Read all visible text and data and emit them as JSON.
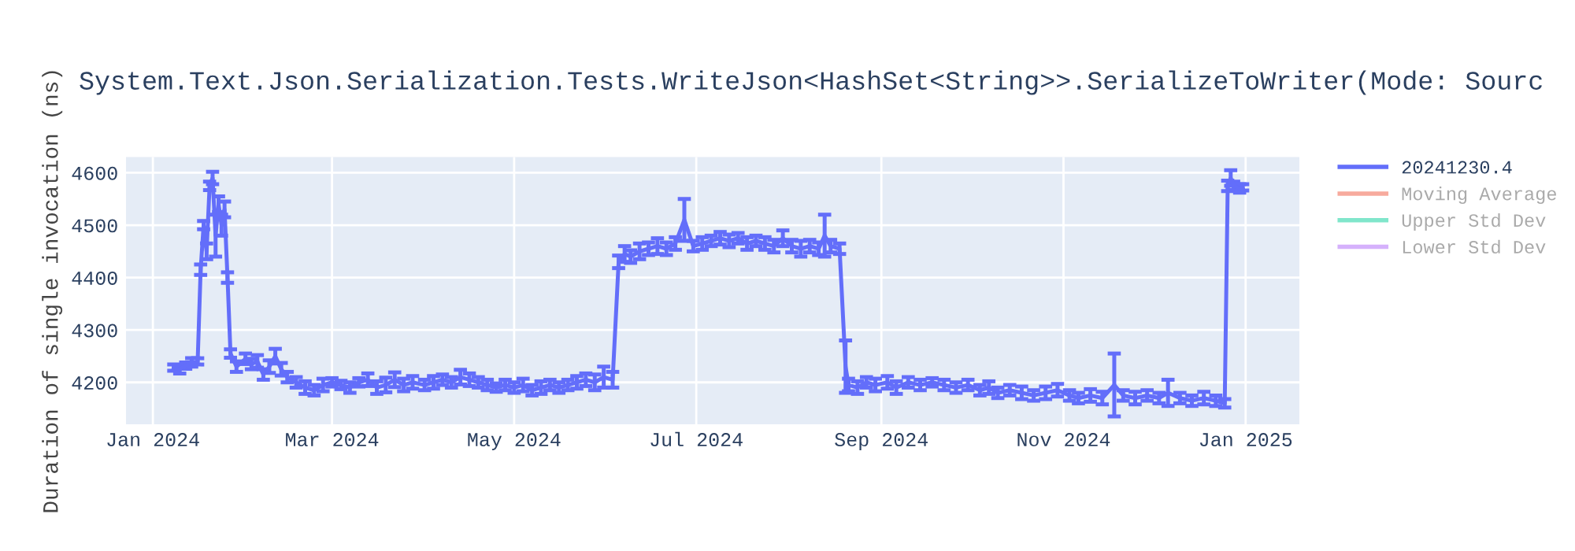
{
  "chart_data": {
    "type": "line",
    "title": "System.Text.Json.Serialization.Tests.WriteJson<HashSet<String>>.SerializeToWriter(Mode: Sourc",
    "ylabel": "Duration of single invocation (ns)",
    "xlim": [
      "2023-12-23",
      "2025-01-19"
    ],
    "xticks": [
      {
        "value": "2024-01-01",
        "label": "Jan 2024"
      },
      {
        "value": "2024-03-01",
        "label": "Mar 2024"
      },
      {
        "value": "2024-05-01",
        "label": "May 2024"
      },
      {
        "value": "2024-07-01",
        "label": "Jul 2024"
      },
      {
        "value": "2024-09-01",
        "label": "Sep 2024"
      },
      {
        "value": "2024-11-01",
        "label": "Nov 2024"
      },
      {
        "value": "2025-01-01",
        "label": "Jan 2025"
      }
    ],
    "ylim": [
      4120,
      4630
    ],
    "yticks": [
      4200,
      4300,
      4400,
      4500,
      4600
    ],
    "grid": true,
    "legend": "top right",
    "marker": "none",
    "line_style": "solid",
    "series": [
      {
        "name": "20241230.4",
        "color": "#636efa",
        "x": [
          "2024-01-08",
          "2024-01-10",
          "2024-01-12",
          "2024-01-14",
          "2024-01-16",
          "2024-01-17",
          "2024-01-18",
          "2024-01-19",
          "2024-01-20",
          "2024-01-21",
          "2024-01-22",
          "2024-01-23",
          "2024-01-24",
          "2024-01-25",
          "2024-01-26",
          "2024-01-27",
          "2024-01-29",
          "2024-02-01",
          "2024-02-03",
          "2024-02-05",
          "2024-02-07",
          "2024-02-09",
          "2024-02-11",
          "2024-02-13",
          "2024-02-15",
          "2024-02-18",
          "2024-02-21",
          "2024-02-24",
          "2024-02-27",
          "2024-03-01",
          "2024-03-04",
          "2024-03-07",
          "2024-03-10",
          "2024-03-13",
          "2024-03-16",
          "2024-03-19",
          "2024-03-22",
          "2024-03-25",
          "2024-03-28",
          "2024-04-01",
          "2024-04-04",
          "2024-04-07",
          "2024-04-10",
          "2024-04-13",
          "2024-04-16",
          "2024-04-19",
          "2024-04-22",
          "2024-04-25",
          "2024-04-28",
          "2024-05-01",
          "2024-05-04",
          "2024-05-07",
          "2024-05-10",
          "2024-05-13",
          "2024-05-16",
          "2024-05-19",
          "2024-05-22",
          "2024-05-25",
          "2024-05-28",
          "2024-05-31",
          "2024-06-03",
          "2024-06-05",
          "2024-06-07",
          "2024-06-09",
          "2024-06-12",
          "2024-06-15",
          "2024-06-18",
          "2024-06-21",
          "2024-06-24",
          "2024-06-27",
          "2024-06-30",
          "2024-07-03",
          "2024-07-06",
          "2024-07-09",
          "2024-07-12",
          "2024-07-15",
          "2024-07-18",
          "2024-07-21",
          "2024-07-24",
          "2024-07-27",
          "2024-07-30",
          "2024-08-02",
          "2024-08-05",
          "2024-08-08",
          "2024-08-11",
          "2024-08-13",
          "2024-08-15",
          "2024-08-18",
          "2024-08-20",
          "2024-08-21",
          "2024-08-24",
          "2024-08-27",
          "2024-08-30",
          "2024-09-03",
          "2024-09-06",
          "2024-09-10",
          "2024-09-14",
          "2024-09-18",
          "2024-09-22",
          "2024-09-26",
          "2024-09-30",
          "2024-10-04",
          "2024-10-07",
          "2024-10-10",
          "2024-10-14",
          "2024-10-18",
          "2024-10-22",
          "2024-10-26",
          "2024-10-30",
          "2024-11-03",
          "2024-11-06",
          "2024-11-10",
          "2024-11-14",
          "2024-11-18",
          "2024-11-21",
          "2024-11-25",
          "2024-11-29",
          "2024-12-03",
          "2024-12-06",
          "2024-12-10",
          "2024-12-14",
          "2024-12-18",
          "2024-12-22",
          "2024-12-25",
          "2024-12-26",
          "2024-12-27",
          "2024-12-28",
          "2024-12-30",
          "2024-12-31"
        ],
        "values": [
          4228,
          4225,
          4232,
          4238,
          4240,
          4415,
          4500,
          4450,
          4575,
          4590,
          4480,
          4540,
          4500,
          4530,
          4400,
          4255,
          4230,
          4245,
          4235,
          4240,
          4215,
          4230,
          4250,
          4225,
          4210,
          4200,
          4190,
          4185,
          4195,
          4200,
          4195,
          4190,
          4200,
          4205,
          4190,
          4195,
          4205,
          4195,
          4200,
          4195,
          4200,
          4205,
          4200,
          4210,
          4205,
          4200,
          4195,
          4190,
          4195,
          4190,
          4195,
          4185,
          4190,
          4195,
          4190,
          4195,
          4200,
          4205,
          4200,
          4210,
          4205,
          4430,
          4445,
          4440,
          4450,
          4455,
          4460,
          4455,
          4465,
          4510,
          4460,
          4465,
          4470,
          4475,
          4470,
          4475,
          4465,
          4470,
          4465,
          4460,
          4475,
          4460,
          4455,
          4460,
          4455,
          4480,
          4460,
          4455,
          4230,
          4195,
          4190,
          4200,
          4195,
          4200,
          4190,
          4200,
          4195,
          4200,
          4195,
          4190,
          4195,
          4185,
          4190,
          4180,
          4185,
          4180,
          4175,
          4180,
          4185,
          4175,
          4170,
          4175,
          4170,
          4195,
          4175,
          4170,
          4175,
          4170,
          4180,
          4170,
          4165,
          4170,
          4165,
          4160,
          4575,
          4590,
          4575,
          4570,
          4572
        ],
        "errors": [
          6,
          8,
          6,
          8,
          6,
          10,
          8,
          15,
          8,
          12,
          40,
          15,
          20,
          15,
          10,
          8,
          10,
          10,
          10,
          12,
          10,
          12,
          14,
          12,
          10,
          10,
          12,
          10,
          12,
          8,
          8,
          10,
          8,
          12,
          12,
          14,
          14,
          12,
          12,
          10,
          12,
          10,
          10,
          14,
          12,
          10,
          10,
          8,
          10,
          10,
          12,
          10,
          12,
          10,
          10,
          10,
          12,
          12,
          15,
          20,
          15,
          12,
          15,
          12,
          15,
          12,
          15,
          12,
          12,
          40,
          10,
          12,
          10,
          12,
          12,
          10,
          12,
          10,
          12,
          12,
          15,
          12,
          15,
          12,
          12,
          40,
          12,
          10,
          50,
          12,
          12,
          10,
          12,
          12,
          12,
          10,
          10,
          8,
          10,
          10,
          10,
          10,
          12,
          10,
          10,
          12,
          10,
          12,
          12,
          10,
          10,
          12,
          12,
          60,
          10,
          12,
          10,
          10,
          25,
          10,
          10,
          12,
          10,
          8,
          10,
          15,
          8,
          8,
          6
        ]
      },
      {
        "name": "Moving Average",
        "color": "#f7aa9d"
      },
      {
        "name": "Upper Std Dev",
        "color": "#80e6cb"
      },
      {
        "name": "Lower Std Dev",
        "color": "#d5b1fc"
      }
    ]
  }
}
